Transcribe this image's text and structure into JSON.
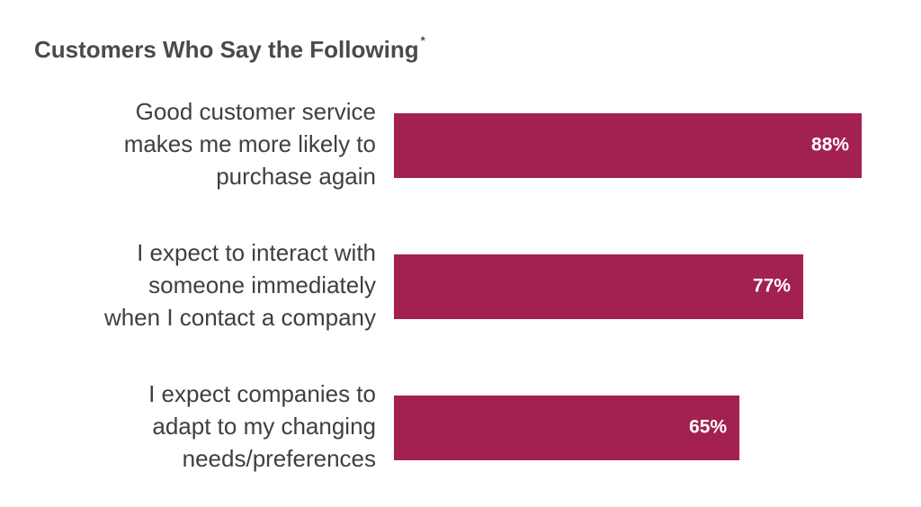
{
  "chart_data": {
    "type": "bar",
    "orientation": "horizontal",
    "title": "Customers Who Say the Following",
    "title_marker": "*",
    "categories": [
      "Good customer service\nmakes me more likely to\npurchase again",
      "I expect to interact with\nsomeone immediately\nwhen I contact a company",
      "I expect companies to\nadapt to my changing\nneeds/preferences"
    ],
    "values": [
      88,
      77,
      65
    ],
    "value_labels": [
      "88%",
      "77%",
      "65%"
    ],
    "color": "#a32150"
  }
}
